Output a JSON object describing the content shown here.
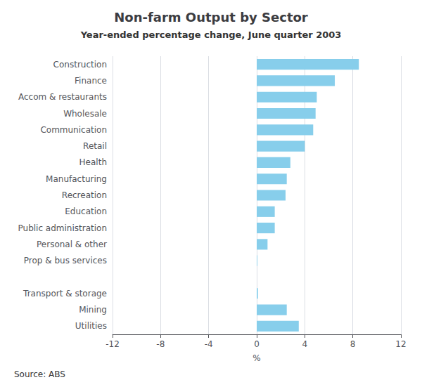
{
  "chart_data": {
    "type": "bar",
    "orientation": "horizontal",
    "title": "Non-farm Output by Sector",
    "subtitle": "Year-ended percentage change, June quarter 2003",
    "source": "Source: ABS",
    "xlabel": "%",
    "categories": [
      "Construction",
      "Finance",
      "Accom & restaurants",
      "Wholesale",
      "Communication",
      "Retail",
      "Health",
      "Manufacturing",
      "Recreation",
      "Education",
      "Public administration",
      "Personal & other",
      "Prop & bus services",
      null,
      "Transport & storage",
      "Mining",
      "Utilities"
    ],
    "values": [
      8.5,
      6.5,
      5.0,
      4.9,
      4.7,
      4.0,
      2.8,
      2.5,
      2.4,
      1.5,
      1.5,
      0.9,
      0.05,
      null,
      0.1,
      2.5,
      3.5
    ],
    "color": "#87CEEB",
    "xlim": [
      -12,
      12
    ],
    "xticks": [
      -12,
      -8,
      -4,
      0,
      4,
      8,
      12
    ],
    "grid": true
  }
}
